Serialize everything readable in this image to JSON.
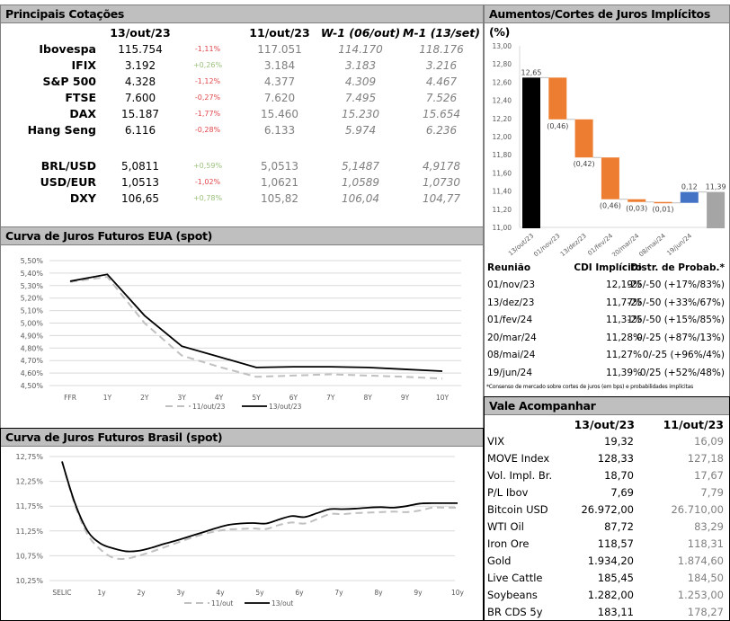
{
  "cotacoes": {
    "title": "Principais Cotações",
    "headers": [
      "13/out/23",
      "11/out/23",
      "W-1 (06/out)",
      "M-1 (13/set)"
    ],
    "rows": [
      {
        "name": "Ibovespa",
        "v1": "115.754",
        "chg": "-1,11%",
        "dir": "neg",
        "v2": "117.051",
        "v3": "114.170",
        "v4": "118.176"
      },
      {
        "name": "IFIX",
        "v1": "3.192",
        "chg": "+0,26%",
        "dir": "pos",
        "v2": "3.184",
        "v3": "3.183",
        "v4": "3.216"
      },
      {
        "name": "S&P 500",
        "v1": "4.328",
        "chg": "-1,12%",
        "dir": "neg",
        "v2": "4.377",
        "v3": "4.309",
        "v4": "4.467"
      },
      {
        "name": "FTSE",
        "v1": "7.600",
        "chg": "-0,27%",
        "dir": "neg",
        "v2": "7.620",
        "v3": "7.495",
        "v4": "7.526"
      },
      {
        "name": "DAX",
        "v1": "15.187",
        "chg": "-1,77%",
        "dir": "neg",
        "v2": "15.460",
        "v3": "15.230",
        "v4": "15.654"
      },
      {
        "name": "Hang Seng",
        "v1": "6.116",
        "chg": "-0,28%",
        "dir": "neg",
        "v2": "6.133",
        "v3": "5.974",
        "v4": "6.236"
      },
      {
        "name": "BRL/USD",
        "v1": "5,0811",
        "chg": "+0,59%",
        "dir": "pos",
        "v2": "5,0513",
        "v3": "5,1487",
        "v4": "4,9178"
      },
      {
        "name": "USD/EUR",
        "v1": "1,0513",
        "chg": "-1,02%",
        "dir": "neg",
        "v2": "1,0621",
        "v3": "1,0589",
        "v4": "1,0730"
      },
      {
        "name": "DXY",
        "v1": "106,65",
        "chg": "+0,78%",
        "dir": "pos",
        "v2": "105,82",
        "v3": "106,04",
        "v4": "104,77"
      }
    ],
    "colors": {
      "neg": "#e0474c",
      "pos": "#9bc27c"
    }
  },
  "chart_data": [
    {
      "id": "eua",
      "type": "line",
      "title": "Curva de Juros Futuros EUA (spot)",
      "categories": [
        "FFR",
        "1Y",
        "2Y",
        "3Y",
        "4Y",
        "5Y",
        "6Y",
        "7Y",
        "8Y",
        "9Y",
        "10Y"
      ],
      "series": [
        {
          "name": "11/out/23",
          "style": "dashed",
          "color": "#c0c0c0",
          "values": [
            5.33,
            5.37,
            5.0,
            4.74,
            4.65,
            4.57,
            4.58,
            4.59,
            4.58,
            4.57,
            4.555
          ]
        },
        {
          "name": "13/out/23",
          "style": "solid",
          "color": "#000000",
          "values": [
            5.335,
            5.39,
            5.06,
            4.815,
            4.73,
            4.645,
            4.65,
            4.65,
            4.645,
            4.63,
            4.615
          ]
        }
      ],
      "yticks": [
        "5,50%",
        "5,40%",
        "5,30%",
        "5,20%",
        "5,10%",
        "5,00%",
        "4,90%",
        "4,80%",
        "4,70%",
        "4,60%",
        "4,50%"
      ],
      "ylim": [
        4.5,
        5.5
      ],
      "grid": true,
      "legend": "bottom"
    },
    {
      "id": "brasil",
      "type": "line",
      "title": "Curva de Juros Futuros Brasil (spot)",
      "categories": [
        "SELIC",
        "1y",
        "2y",
        "3y",
        "4y",
        "5y",
        "6y",
        "7y",
        "8y",
        "9y",
        "10y"
      ],
      "series": [
        {
          "name": "11/out",
          "style": "dashed",
          "color": "#c0c0c0",
          "values": [
            12.65,
            11.78,
            11.18,
            10.88,
            10.71,
            10.69,
            10.75,
            10.83,
            10.92,
            11.01,
            11.1,
            11.18,
            11.24,
            11.28,
            11.29,
            11.3,
            11.29,
            11.37,
            11.42,
            11.4,
            11.49,
            11.59,
            11.59,
            11.61,
            11.62,
            11.63,
            11.64,
            11.63,
            11.66,
            11.72,
            11.72,
            11.72
          ]
        },
        {
          "name": "13/out",
          "style": "solid",
          "color": "#000000",
          "values": [
            12.65,
            11.82,
            11.25,
            11.0,
            10.9,
            10.84,
            10.85,
            10.91,
            10.99,
            11.06,
            11.14,
            11.22,
            11.3,
            11.37,
            11.4,
            11.41,
            11.4,
            11.48,
            11.55,
            11.53,
            11.61,
            11.69,
            11.69,
            11.7,
            11.72,
            11.73,
            11.72,
            11.75,
            11.8,
            11.81,
            11.81,
            11.81
          ]
        }
      ],
      "yticks": [
        "12,75%",
        "12,25%",
        "11,75%",
        "11,25%",
        "10,75%",
        "10,25%"
      ],
      "ylim": [
        10.25,
        12.75
      ],
      "grid": true,
      "legend": "bottom"
    },
    {
      "id": "waterfall",
      "type": "bar",
      "title": "Aumentos/Cortes de Juros Implícitos (%)",
      "categories": [
        "13/out/23",
        "01/nov/23",
        "13/dez/23",
        "01/fev/24",
        "20/mar/24",
        "08/mai/24",
        "19/jun/24",
        ""
      ],
      "values": [
        12.65,
        -0.46,
        -0.42,
        -0.46,
        -0.03,
        -0.01,
        0.12,
        11.39
      ],
      "labels": [
        "12,65",
        "(0,46)",
        "(0,42)",
        "(0,46)",
        "(0,03)",
        "(0,01)",
        "0,12",
        "11,39"
      ],
      "kinds": [
        "total",
        "down",
        "down",
        "down",
        "down",
        "down",
        "up",
        "total-end"
      ],
      "colors": {
        "total": "#000000",
        "down": "#ed7d31",
        "up": "#4472c4",
        "total-end": "#a5a5a5"
      },
      "yticks": [
        "13,00",
        "12,80",
        "12,60",
        "12,40",
        "12,20",
        "12,00",
        "11,80",
        "11,60",
        "11,40",
        "11,20",
        "11,00"
      ],
      "ylim": [
        11.0,
        13.0
      ]
    }
  ],
  "reuniao": {
    "headers": [
      "Reunião",
      "CDI Implícito",
      "Distr. de Probab.*"
    ],
    "rows": [
      [
        "01/nov/23",
        "12,19%",
        "-25/-50 (+17%/83%)"
      ],
      [
        "13/dez/23",
        "11,77%",
        "-25/-50 (+33%/67%)"
      ],
      [
        "01/fev/24",
        "11,31%",
        "-25/-50 (+15%/85%)"
      ],
      [
        "20/mar/24",
        "11,28%",
        "0/-25 (+87%/13%)"
      ],
      [
        "08/mai/24",
        "11,27%",
        "0/-25 (+96%/4%)"
      ],
      [
        "19/jun/24",
        "11,39%",
        "0/25 (+52%/48%)"
      ]
    ],
    "footnote": "*Consenso de mercado sobre cortes de juros (em bps) e probabilidades implícitas"
  },
  "vale": {
    "title": "Vale Acompanhar",
    "headers": [
      "13/out/23",
      "11/out/23"
    ],
    "rows": [
      [
        "VIX",
        "19,32",
        "16,09"
      ],
      [
        "MOVE Index",
        "128,33",
        "127,18"
      ],
      [
        "Vol. Impl. Br.",
        "18,70",
        "17,67"
      ],
      [
        "P/L Ibov",
        "7,69",
        "7,79"
      ],
      [
        "Bitcoin USD",
        "26.972,00",
        "26.710,00"
      ],
      [
        "WTI Oil",
        "87,72",
        "83,29"
      ],
      [
        "Iron Ore",
        "118,57",
        "118,31"
      ],
      [
        "Gold",
        "1.934,20",
        "1.874,60"
      ],
      [
        "Live Cattle",
        "185,45",
        "184,50"
      ],
      [
        "Soybeans",
        "1.282,00",
        "1.253,00"
      ],
      [
        "BR CDS 5y",
        "183,11",
        "178,27"
      ]
    ]
  }
}
